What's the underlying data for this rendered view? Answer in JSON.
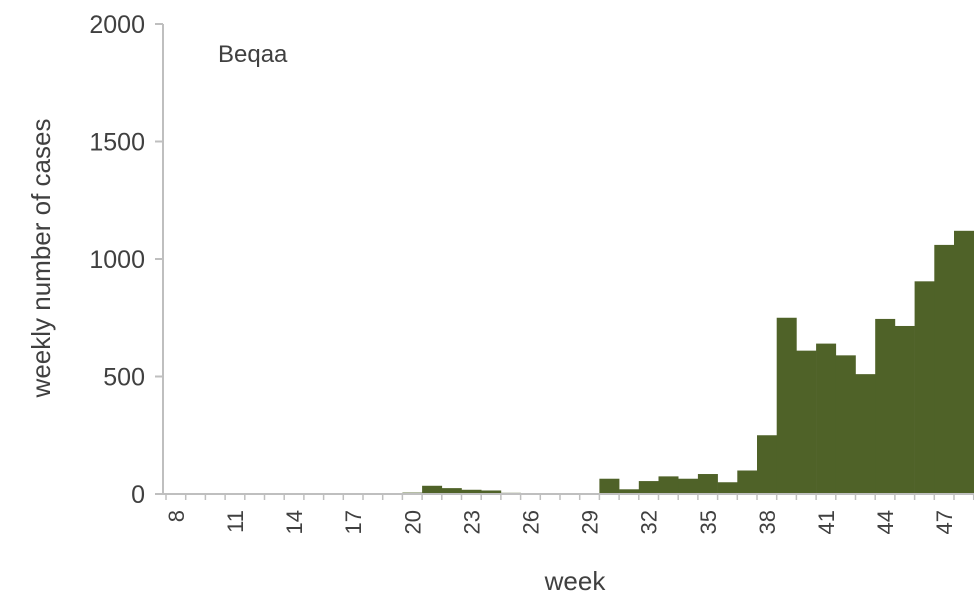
{
  "chart_data": {
    "type": "bar",
    "title": "",
    "annotation": "Beqaa",
    "xlabel": "week",
    "ylabel": "weekly number of cases",
    "ylim": [
      0,
      2000
    ],
    "yticks": [
      0,
      500,
      1000,
      1500,
      2000
    ],
    "grid": false,
    "bar_color": "#4f6228",
    "xtick_labels": [
      "8",
      "11",
      "14",
      "17",
      "20",
      "23",
      "26",
      "29",
      "32",
      "35",
      "38",
      "41",
      "44",
      "47"
    ],
    "categories": [
      8,
      9,
      10,
      11,
      12,
      13,
      14,
      15,
      16,
      17,
      18,
      19,
      20,
      21,
      22,
      23,
      24,
      25,
      26,
      27,
      28,
      29,
      30,
      31,
      32,
      33,
      34,
      35,
      36,
      37,
      38,
      39,
      40,
      41,
      42,
      43,
      44,
      45,
      46,
      47,
      48
    ],
    "values": [
      0,
      0,
      0,
      0,
      0,
      0,
      4,
      0,
      0,
      2,
      0,
      3,
      6,
      35,
      25,
      18,
      15,
      5,
      4,
      3,
      3,
      2,
      65,
      20,
      55,
      75,
      65,
      85,
      50,
      100,
      250,
      750,
      610,
      640,
      590,
      510,
      745,
      715,
      905,
      1060,
      1120
    ]
  }
}
